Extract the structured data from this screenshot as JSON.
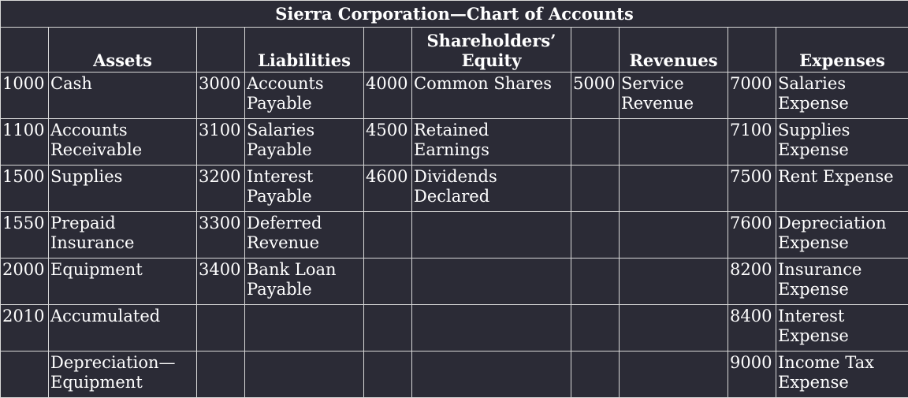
{
  "title": "Sierra Corporation—Chart of Accounts",
  "headers": [
    "Assets",
    "Liabilities",
    "Shareholders’ Equity",
    "Revenues",
    "Expenses"
  ],
  "rows": [
    [
      [
        "1000",
        "Cash"
      ],
      [
        "3000",
        "Accounts Payable"
      ],
      [
        "4000",
        "Common Shares"
      ],
      [
        "5000",
        "Service Revenue"
      ],
      [
        "7000",
        "Salaries Expense"
      ]
    ],
    [
      [
        "1100",
        "Accounts Receivable"
      ],
      [
        "3100",
        "Salaries Payable"
      ],
      [
        "4500",
        "Retained Earnings"
      ],
      [
        "",
        ""
      ],
      [
        "7100",
        "Supplies Expense"
      ]
    ],
    [
      [
        "1500",
        "Supplies"
      ],
      [
        "3200",
        "Interest Payable"
      ],
      [
        "4600",
        "Dividends Declared"
      ],
      [
        "",
        ""
      ],
      [
        "7500",
        "Rent Expense"
      ]
    ],
    [
      [
        "1550",
        "Prepaid Insurance"
      ],
      [
        "3300",
        "Deferred Revenue"
      ],
      [
        "",
        ""
      ],
      [
        "",
        ""
      ],
      [
        "7600",
        "Depreciation Expense"
      ]
    ],
    [
      [
        "2000",
        "Equipment"
      ],
      [
        "3400",
        "Bank Loan Payable"
      ],
      [
        "",
        ""
      ],
      [
        "",
        ""
      ],
      [
        "8200",
        "Insurance Expense"
      ]
    ],
    [
      [
        "2010",
        "Accumulated"
      ],
      [
        "",
        ""
      ],
      [
        "",
        ""
      ],
      [
        "",
        ""
      ],
      [
        "8400",
        "Interest Expense"
      ]
    ],
    [
      [
        "",
        "Depreciation—Equipment"
      ],
      [
        "",
        ""
      ],
      [
        "",
        ""
      ],
      [
        "",
        ""
      ],
      [
        "9000",
        "Income Tax Expense"
      ]
    ]
  ]
}
